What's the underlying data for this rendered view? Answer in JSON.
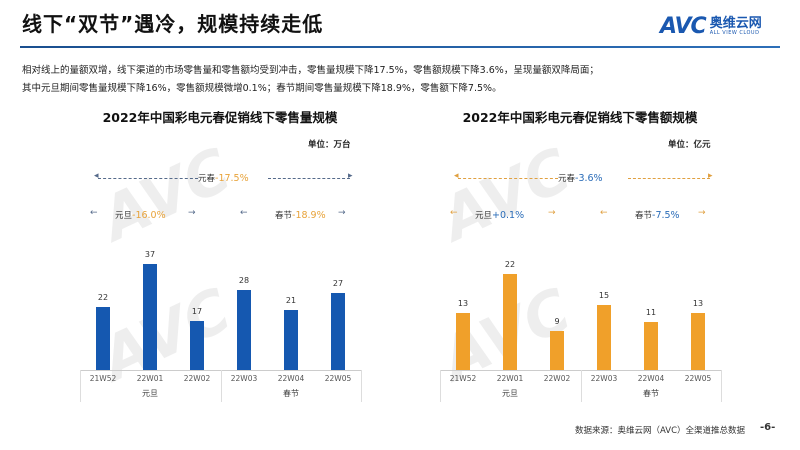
{
  "header": {
    "title": "线下“双节”遇冷，规模持续走低",
    "logo_text": "AVC",
    "logo_cn": "奥维云网",
    "logo_en": "ALL VIEW CLOUD"
  },
  "summary": [
    "相对线上的量额双增，线下渠道的市场零售量和零售额均受到冲击，零售量规模下降17.5%，零售额规模下降3.6%，呈现量额双降局面；",
    "其中元旦期间零售量规模下降16%，零售额规模微增0.1%；春节期间零售量规模下降18.9%，零售额下降7.5%。"
  ],
  "colors": {
    "volume": "#1558b0",
    "value": "#f0a02a",
    "accent_text": "#e8a33a",
    "accent_blue": "#2a6cb8"
  },
  "chart_data": [
    {
      "type": "bar",
      "title": "2022年中国彩电元春促销线下零售量规模",
      "unit": "单位：万台",
      "categories": [
        "21W52",
        "22W01",
        "22W02",
        "22W03",
        "22W04",
        "22W05"
      ],
      "groups": [
        {
          "label": "元旦",
          "span": 3
        },
        {
          "label": "春节",
          "span": 3
        }
      ],
      "values": [
        22,
        37,
        17,
        28,
        21,
        27
      ],
      "annotations": {
        "total_label": "元春",
        "total": "-17.5%",
        "g1_label": "元旦",
        "g1": "-16.0%",
        "g2_label": "春节",
        "g2": "-18.9%"
      }
    },
    {
      "type": "bar",
      "title": "2022年中国彩电元春促销线下零售额规模",
      "unit": "单位：亿元",
      "categories": [
        "21W52",
        "22W01",
        "22W02",
        "22W03",
        "22W04",
        "22W05"
      ],
      "groups": [
        {
          "label": "元旦",
          "span": 3
        },
        {
          "label": "春节",
          "span": 3
        }
      ],
      "values": [
        13,
        22,
        9,
        15,
        11,
        13
      ],
      "annotations": {
        "total_label": "元春",
        "total": "-3.6%",
        "g1_label": "元旦",
        "g1": "+0.1%",
        "g2_label": "春节",
        "g2": "-7.5%"
      }
    }
  ],
  "footer": {
    "source": "数据来源：奥维云网（AVC）全渠道推总数据",
    "page": "-6-"
  }
}
